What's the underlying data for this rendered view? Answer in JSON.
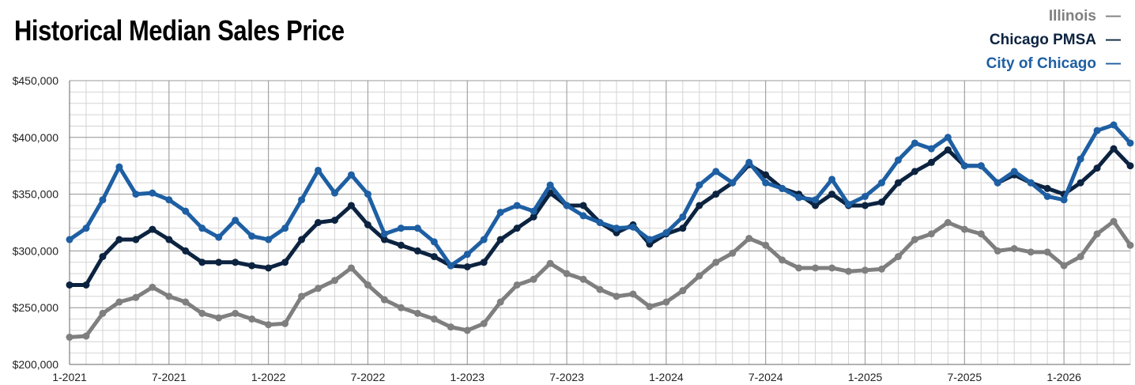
{
  "title": "Historical Median Sales Price",
  "chart_data": {
    "type": "line",
    "title": "Historical Median Sales Price",
    "xlabel": "",
    "ylabel": "",
    "ylim": [
      200000,
      450000
    ],
    "y_ticks": [
      200000,
      250000,
      300000,
      350000,
      400000,
      450000
    ],
    "y_tick_labels": [
      "$200,000",
      "$250,000",
      "$300,000",
      "$350,000",
      "$400,000",
      "$450,000"
    ],
    "x_tick_labels": [
      "1-2021",
      "7-2021",
      "1-2022",
      "7-2022",
      "1-2023",
      "7-2023",
      "1-2024",
      "7-2024",
      "1-2025",
      "7-2025",
      "1-2026"
    ],
    "x": [
      "1-2021",
      "2-2021",
      "3-2021",
      "4-2021",
      "5-2021",
      "6-2021",
      "7-2021",
      "8-2021",
      "9-2021",
      "10-2021",
      "11-2021",
      "12-2021",
      "1-2022",
      "2-2022",
      "3-2022",
      "4-2022",
      "5-2022",
      "6-2022",
      "7-2022",
      "8-2022",
      "9-2022",
      "10-2022",
      "11-2022",
      "12-2022",
      "1-2023",
      "2-2023",
      "3-2023",
      "4-2023",
      "5-2023",
      "6-2023",
      "7-2023",
      "8-2023",
      "9-2023",
      "10-2023",
      "11-2023",
      "12-2023",
      "1-2024",
      "2-2024",
      "3-2024",
      "4-2024",
      "5-2024",
      "6-2024",
      "7-2024",
      "8-2024",
      "9-2024",
      "10-2024",
      "11-2024",
      "12-2024",
      "1-2025",
      "2-2025",
      "3-2025",
      "4-2025",
      "5-2025",
      "6-2025",
      "7-2025",
      "8-2025",
      "9-2025",
      "10-2025",
      "11-2025",
      "12-2025",
      "1-2026",
      "2-2026",
      "3-2026",
      "4-2026",
      "5-2026"
    ],
    "grid": true,
    "legend_position": "top-right",
    "series": [
      {
        "name": "Illinois",
        "color": "#7f7f7f",
        "values": [
          224000,
          225000,
          245000,
          255000,
          259000,
          268000,
          260000,
          255000,
          245000,
          241000,
          245000,
          240000,
          235000,
          236000,
          260000,
          267000,
          274000,
          285000,
          270000,
          257000,
          250000,
          245000,
          240000,
          233000,
          230000,
          236000,
          255000,
          270000,
          275000,
          289000,
          280000,
          275000,
          266000,
          260000,
          262000,
          251000,
          255000,
          265000,
          278000,
          290000,
          298000,
          311000,
          305000,
          292000,
          285000,
          285000,
          285000,
          282000,
          283000,
          284000,
          295000,
          310000,
          315000,
          325000,
          319000,
          315000,
          300000,
          302000,
          299000,
          299000,
          287000,
          295000,
          315000,
          326000,
          305000
        ]
      },
      {
        "name": "Chicago PMSA",
        "color": "#0c2340",
        "values": [
          270000,
          270000,
          295000,
          310000,
          310000,
          319000,
          310000,
          300000,
          290000,
          290000,
          290000,
          287000,
          285000,
          290000,
          310000,
          325000,
          327000,
          340000,
          323000,
          310000,
          305000,
          300000,
          295000,
          287000,
          286000,
          290000,
          310000,
          320000,
          330000,
          351000,
          340000,
          340000,
          325000,
          316000,
          323000,
          306000,
          315000,
          320000,
          340000,
          350000,
          360000,
          376000,
          367000,
          355000,
          350000,
          340000,
          350000,
          340000,
          340000,
          343000,
          360000,
          370000,
          378000,
          389000,
          375000,
          375000,
          360000,
          367000,
          360000,
          355000,
          350000,
          360000,
          373000,
          390000,
          375000
        ]
      },
      {
        "name": "City of Chicago",
        "color": "#1e5fa3",
        "values": [
          310000,
          320000,
          345000,
          374000,
          350000,
          351000,
          345000,
          335000,
          320000,
          312000,
          327000,
          313000,
          310000,
          320000,
          345000,
          371000,
          351000,
          367000,
          350000,
          315000,
          320000,
          320000,
          308000,
          287000,
          297000,
          310000,
          334000,
          340000,
          335000,
          358000,
          340000,
          331000,
          325000,
          320000,
          321000,
          310000,
          316000,
          330000,
          358000,
          370000,
          360000,
          378000,
          360000,
          355000,
          347000,
          345000,
          363000,
          341000,
          348000,
          360000,
          380000,
          395000,
          390000,
          400000,
          375000,
          375000,
          360000,
          370000,
          360000,
          348000,
          345000,
          381000,
          406000,
          411000,
          395000
        ]
      }
    ]
  }
}
